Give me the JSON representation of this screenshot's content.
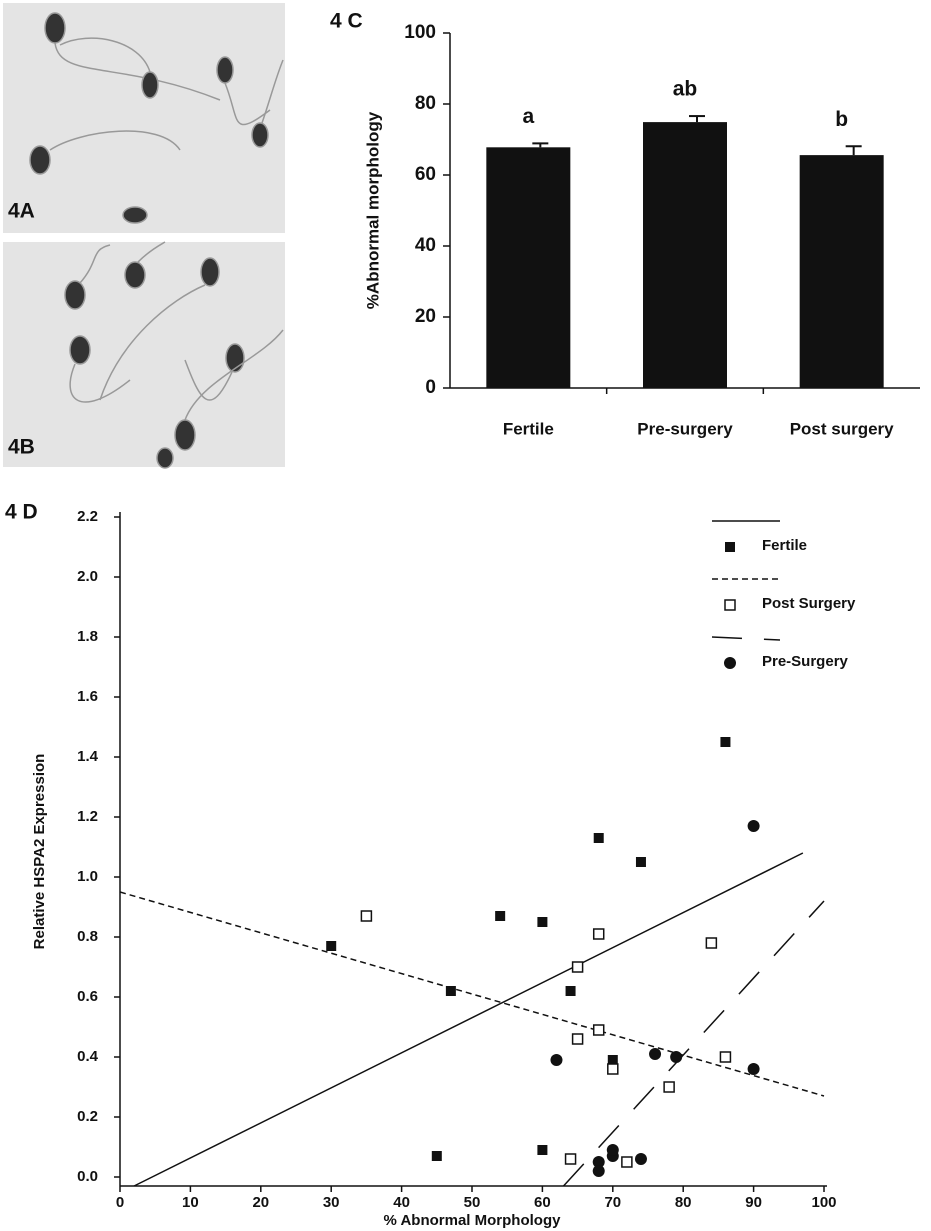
{
  "images": [
    {
      "label": "4A"
    },
    {
      "label": "4B"
    }
  ],
  "chart_data": [
    {
      "type": "bar",
      "panel_label": "4 C",
      "ylabel": "%Abnormal morphology",
      "categories": [
        "Fertile",
        "Pre-surgery",
        "Post surgery"
      ],
      "values": [
        67.8,
        74.9,
        65.6
      ],
      "errors": [
        1.1,
        1.7,
        2.5
      ],
      "annotations": [
        "a",
        "ab",
        "b"
      ],
      "color": "#111111",
      "ylim": [
        0,
        100
      ],
      "yticks": [
        0,
        20,
        40,
        60,
        80,
        100
      ]
    },
    {
      "type": "scatter",
      "panel_label": "4 D",
      "xlabel": "% Abnormal Morphology",
      "ylabel": "Relative HSPA2 Expression",
      "xlim": [
        0,
        100
      ],
      "xticks": [
        0,
        10,
        20,
        30,
        40,
        50,
        60,
        70,
        80,
        90,
        100
      ],
      "ylim": [
        -0.03,
        2.2
      ],
      "yticks": [
        {
          "value": 0,
          "label": "0.0"
        },
        0.2,
        0.4,
        0.6,
        0.8,
        {
          "value": 1,
          "label": "1.0"
        },
        1.2,
        1.4,
        1.6,
        1.8,
        {
          "value": 2,
          "label": "2.0"
        },
        2.2
      ],
      "legend": "upper right",
      "series": [
        {
          "name": "Fertile",
          "color": "#111111",
          "marker": "filled-square",
          "dash": "solid",
          "x": [
            30,
            45,
            47,
            54,
            60,
            60,
            64,
            68,
            70,
            74,
            86
          ],
          "values": [
            0.77,
            0.07,
            0.62,
            0.87,
            0.09,
            0.85,
            0.62,
            1.13,
            0.39,
            1.05,
            1.45
          ],
          "trend_x": [
            2,
            97
          ],
          "trend_y": [
            -0.03,
            1.08
          ]
        },
        {
          "name": "Post Surgery",
          "color": "#111111",
          "marker": "open-square",
          "dash": "short",
          "x": [
            35,
            64,
            65,
            65,
            68,
            68,
            70,
            72,
            78,
            84,
            86
          ],
          "values": [
            0.87,
            0.06,
            0.7,
            0.46,
            0.81,
            0.49,
            0.36,
            0.05,
            0.3,
            0.78,
            0.4
          ],
          "trend_x": [
            0,
            100
          ],
          "trend_y": [
            0.95,
            0.27
          ]
        },
        {
          "name": "Pre-Surgery",
          "color": "#111111",
          "marker": "circle",
          "dash": "long",
          "x": [
            62,
            68,
            68,
            70,
            70,
            74,
            76,
            79,
            90,
            90
          ],
          "values": [
            0.39,
            0.05,
            0.02,
            0.07,
            0.09,
            0.06,
            0.41,
            0.4,
            0.36,
            1.17
          ],
          "trend_x": [
            63,
            100
          ],
          "trend_y": [
            -0.03,
            0.92
          ]
        }
      ]
    }
  ]
}
